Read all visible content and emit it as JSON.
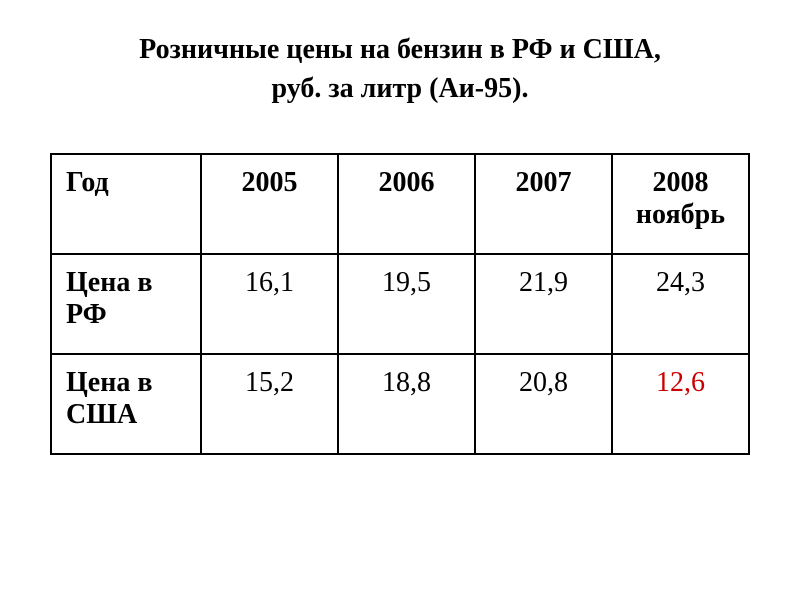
{
  "title_line1": "Розничные цены на бензин в РФ и США,",
  "title_line2": "руб. за литр (Аи-95).",
  "table": {
    "header_row_label": "Год",
    "years": [
      "2005",
      "2006",
      "2007",
      "2008 ноябрь"
    ],
    "rows": [
      {
        "label": "Цена в РФ",
        "values": [
          "16,1",
          "19,5",
          "21,9",
          "24,3"
        ],
        "highlight": [
          false,
          false,
          false,
          false
        ]
      },
      {
        "label": "Цена в США",
        "values": [
          "15,2",
          "18,8",
          "20,8",
          "12,6"
        ],
        "highlight": [
          false,
          false,
          false,
          true
        ]
      }
    ]
  },
  "style": {
    "title_fontsize": 28,
    "cell_fontsize": 28,
    "border_color": "#000000",
    "border_width": 2,
    "background_color": "#ffffff",
    "text_color": "#000000",
    "highlight_color": "#cc0000",
    "font_family": "Times New Roman"
  }
}
